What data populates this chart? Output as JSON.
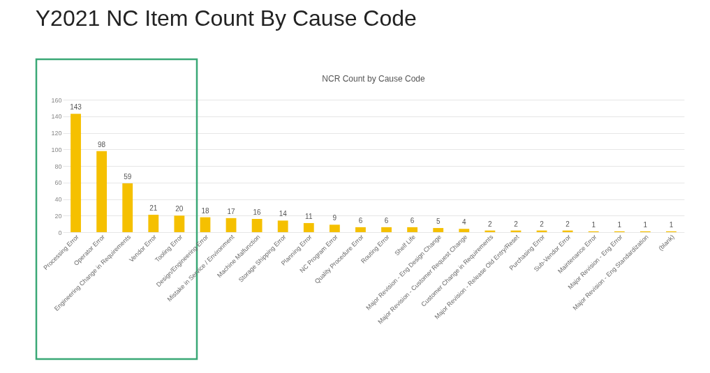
{
  "chart_data": {
    "type": "bar",
    "title": "Y2021 NC Item Count By Cause Code",
    "subtitle": "NCR Count by Cause Code",
    "categories": [
      "Processing Error",
      "Operator Error",
      "Engineering Change in Requirements",
      "Vendor Error",
      "Tooling Error",
      "Design/Engineering Error",
      "Mistake in Service / Environment",
      "Machine Malfunction",
      "Storage Shipping Error",
      "Planning Error",
      "NC Program Error",
      "Quality Procedure Error",
      "Routing Error",
      "Shelf Life",
      "Major Revision - Eng Design Change",
      "Major Revision - Customer Request Change",
      "Customer Change in Requirements",
      "Major Revision - Release Old Entry/Reset",
      "Purchasing Error",
      "Sub-Vendor Error",
      "Maintenance Error",
      "Major Revision - Eng Error",
      "Major Revision - Eng Standardization",
      "(blank)"
    ],
    "values": [
      143,
      98,
      59,
      21,
      20,
      18,
      17,
      16,
      14,
      11,
      9,
      6,
      6,
      6,
      5,
      4,
      2,
      2,
      2,
      2,
      1,
      1,
      1,
      1
    ],
    "color": "#f5c000",
    "ylim": [
      0,
      160
    ],
    "yticks": [
      0,
      20,
      40,
      60,
      80,
      100,
      120,
      140,
      160
    ],
    "grid": "y",
    "data_labels": true
  }
}
